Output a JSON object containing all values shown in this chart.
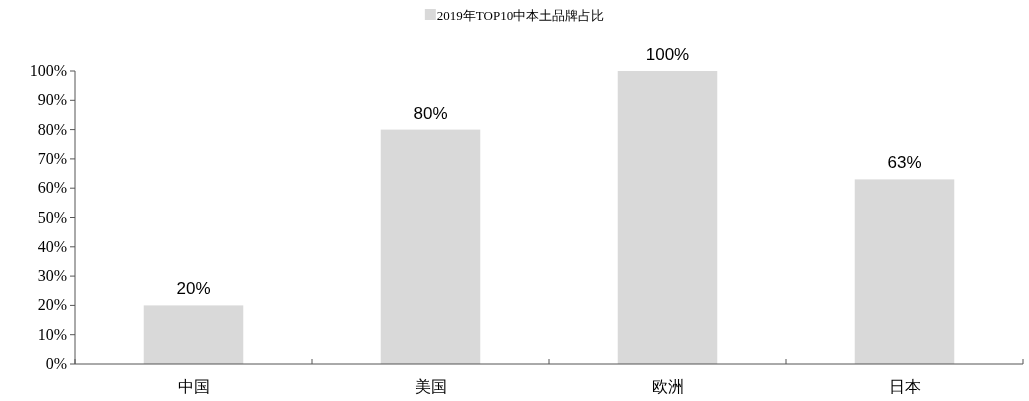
{
  "chart_data": {
    "type": "bar",
    "categories": [
      "中国",
      "美国",
      "欧洲",
      "日本"
    ],
    "series": [
      {
        "name": "2019年TOP10中本土品牌占比",
        "color": "#d9d9d9",
        "values": [
          20,
          80,
          100,
          63
        ],
        "value_labels": [
          "20%",
          "80%",
          "100%",
          "63%"
        ]
      }
    ],
    "ylim": [
      0,
      100
    ],
    "yticks": [
      {
        "value": 0,
        "label": "0%"
      },
      {
        "value": 10,
        "label": "10%"
      },
      {
        "value": 20,
        "label": "20%"
      },
      {
        "value": 30,
        "label": "30%"
      },
      {
        "value": 40,
        "label": "40%"
      },
      {
        "value": 50,
        "label": "50%"
      },
      {
        "value": 60,
        "label": "60%"
      },
      {
        "value": 70,
        "label": "70%"
      },
      {
        "value": 80,
        "label": "80%"
      },
      {
        "value": 90,
        "label": "90%"
      },
      {
        "value": 100,
        "label": "100%"
      }
    ],
    "grid": false,
    "legend": "top"
  }
}
